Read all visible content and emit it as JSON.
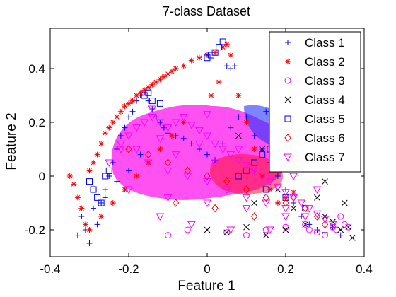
{
  "chart_data": {
    "type": "scatter",
    "title": "7-class Dataset",
    "xlabel": "Feature 1",
    "ylabel": "Feature 2",
    "xlim": [
      -0.4,
      0.4
    ],
    "ylim": [
      -0.3,
      0.55
    ],
    "xticks": [
      -0.4,
      -0.2,
      0,
      0.2,
      0.4
    ],
    "xtick_labels": [
      "-0.4",
      "-0.2",
      "0",
      "0.2",
      "0.4"
    ],
    "yticks": [
      -0.2,
      0,
      0.2,
      0.4
    ],
    "ytick_labels": [
      "-0.2",
      "0",
      "0.2",
      "0.4"
    ],
    "grid": false,
    "legend_position": "top-right",
    "series": [
      {
        "name": "Class 1",
        "marker": "plus",
        "color": "#0000ff",
        "x": [
          -0.33,
          -0.31,
          -0.3,
          -0.28,
          -0.27,
          -0.26,
          -0.25,
          -0.24,
          -0.23,
          -0.22,
          -0.21,
          -0.2,
          -0.19,
          -0.18,
          -0.17,
          -0.16,
          -0.15,
          -0.14,
          -0.13,
          -0.12,
          -0.11,
          -0.1,
          -0.08,
          -0.06,
          -0.04,
          -0.02,
          0,
          0.02,
          0.04,
          0.06,
          0.08,
          0.1,
          0.12,
          0.14,
          0.16,
          0.18,
          0.2,
          0.22,
          0.24,
          0.26,
          0.28,
          0.3,
          0.32,
          0.34,
          -0.32,
          -0.29,
          -0.26,
          -0.23,
          -0.2,
          -0.17,
          0.05,
          0.06,
          0.07,
          0.1,
          0.15,
          0.2,
          0.25
        ],
        "y": [
          -0.22,
          -0.2,
          -0.25,
          -0.18,
          -0.1,
          -0.05,
          0,
          0.05,
          0.1,
          0.15,
          0.18,
          0.22,
          0.24,
          0.28,
          0.3,
          0.31,
          0.28,
          0.25,
          0.22,
          0.2,
          0.18,
          0.16,
          0.15,
          0.14,
          0.12,
          0.1,
          0.08,
          0.06,
          0.12,
          0.18,
          0.22,
          0.2,
          0.15,
          0.1,
          0.05,
          0.0,
          -0.05,
          -0.1,
          -0.15,
          -0.18,
          -0.2,
          -0.21,
          -0.19,
          -0.22,
          -0.15,
          -0.12,
          -0.08,
          -0.02,
          0.02,
          0.08,
          0.41,
          0.4,
          0.41,
          0.22,
          0.24,
          0.2,
          0.18
        ]
      },
      {
        "name": "Class 2",
        "marker": "star",
        "color": "#ff0000",
        "x": [
          -0.35,
          -0.34,
          -0.33,
          -0.32,
          -0.31,
          -0.3,
          -0.29,
          -0.28,
          -0.27,
          -0.26,
          -0.25,
          -0.24,
          -0.23,
          -0.22,
          -0.21,
          -0.2,
          -0.19,
          -0.18,
          -0.17,
          -0.16,
          -0.15,
          -0.14,
          -0.13,
          -0.12,
          -0.11,
          -0.1,
          -0.09,
          -0.08,
          -0.06,
          -0.04,
          -0.02,
          0,
          0.02,
          0.04,
          0.05,
          0.06,
          0.08,
          0.1,
          0.12,
          0.14,
          0.16,
          0.18,
          0.2,
          0.22,
          0.24,
          0.26,
          0.28,
          0.3,
          0.32,
          -0.3,
          -0.27,
          -0.24,
          -0.21,
          -0.18,
          -0.15,
          -0.12,
          -0.09,
          -0.06,
          0.01,
          0.03
        ],
        "y": [
          0.0,
          -0.03,
          -0.08,
          -0.12,
          -0.18,
          0.02,
          0.05,
          0.08,
          0.12,
          0.16,
          0.18,
          0.2,
          0.22,
          0.24,
          0.26,
          0.27,
          0.28,
          0.3,
          0.31,
          0.32,
          0.33,
          0.34,
          0.35,
          0.36,
          0.37,
          0.38,
          0.39,
          0.4,
          0.41,
          0.43,
          0.44,
          0.45,
          0.46,
          0.48,
          0.49,
          0.45,
          0.3,
          0.2,
          0.1,
          0.0,
          -0.05,
          -0.1,
          -0.08,
          -0.06,
          0.05,
          0.1,
          0.15,
          0.12,
          0.08,
          -0.2,
          -0.15,
          -0.1,
          -0.05,
          0.0,
          0.05,
          0.1,
          0.15,
          0.2,
          0.3,
          0.35
        ]
      },
      {
        "name": "Class 3",
        "marker": "circle",
        "color": "#ff00ff",
        "x": [
          0.32,
          0.33,
          0.34,
          0.35,
          0.36,
          0.3,
          0.28,
          0.26,
          0.25,
          0.2,
          0.15,
          0.1,
          0.05,
          -0.05,
          -0.1
        ],
        "y": [
          -0.19,
          -0.2,
          -0.15,
          -0.18,
          -0.19,
          -0.22,
          -0.21,
          -0.2,
          -0.18,
          -0.19,
          -0.2,
          -0.22,
          -0.21,
          -0.2,
          -0.22
        ]
      },
      {
        "name": "Class 4",
        "marker": "x",
        "color": "#000000",
        "x": [
          0.0,
          0.05,
          0.1,
          0.15,
          0.2,
          0.25,
          0.3,
          0.32,
          0.34,
          0.36,
          0.37,
          0.12,
          0.18,
          0.22,
          0.28,
          0.08,
          0.14,
          0.24,
          0.3,
          0.35
        ],
        "y": [
          -0.2,
          -0.21,
          -0.19,
          -0.22,
          -0.2,
          -0.18,
          -0.15,
          -0.17,
          -0.2,
          -0.19,
          -0.23,
          -0.1,
          -0.05,
          -0.12,
          -0.08,
          0.15,
          0.1,
          0.05,
          -0.02,
          -0.1
        ]
      },
      {
        "name": "Class 5",
        "marker": "square",
        "color": "#0000ff",
        "x": [
          0.0,
          0.01,
          0.02,
          0.03,
          0.04,
          -0.3,
          -0.29,
          -0.28,
          -0.27,
          -0.26,
          -0.25,
          -0.16,
          -0.15,
          -0.14,
          -0.12,
          0.08,
          0.1,
          0.12,
          0.14,
          0.16,
          0.18,
          0.2,
          0.22,
          0.24,
          0.26,
          0.28,
          0.3,
          0.15,
          0.2,
          0.25
        ],
        "y": [
          0.44,
          0.45,
          0.46,
          0.48,
          0.5,
          -0.02,
          -0.05,
          -0.08,
          -0.1,
          0.0,
          0.02,
          0.3,
          0.31,
          0.28,
          0.27,
          0.0,
          0.02,
          0.05,
          0.08,
          0.1,
          0.12,
          0.15,
          0.18,
          0.2,
          0.16,
          0.12,
          0.1,
          -0.05,
          -0.08,
          -0.12
        ]
      },
      {
        "name": "Class 6",
        "marker": "diamond",
        "color": "#ff0000",
        "x": [
          -0.2,
          -0.15,
          -0.1,
          -0.05,
          0.0,
          0.05,
          0.1,
          0.15,
          0.2,
          0.25,
          0.28,
          0.3,
          -0.08,
          0.02,
          0.12,
          0.22,
          0.26,
          0.18
        ],
        "y": [
          0.1,
          0.08,
          0.05,
          0.02,
          0.0,
          -0.02,
          -0.05,
          -0.08,
          -0.1,
          -0.12,
          -0.15,
          -0.18,
          -0.1,
          -0.12,
          -0.15,
          -0.08,
          0.05,
          0.12
        ]
      },
      {
        "name": "Class 7",
        "marker": "triangle-down",
        "color": "#ff00ff",
        "x": [
          -0.25,
          -0.22,
          -0.2,
          -0.18,
          -0.16,
          -0.14,
          -0.12,
          -0.1,
          -0.08,
          -0.06,
          -0.04,
          -0.02,
          0,
          0.02,
          0.04,
          0.06,
          0.08,
          0.1,
          0.12,
          0.14,
          0.16,
          0.18,
          0.2,
          0.22,
          0.24,
          0.26,
          0.28,
          0.3,
          0.32,
          -0.15,
          -0.1,
          -0.05,
          0,
          0.05,
          0.1,
          0.15,
          0.2,
          0.25,
          -0.2,
          -0.1,
          0,
          0.1,
          0.2,
          -0.18,
          -0.08,
          0.02,
          0.12,
          0.22,
          -0.22,
          -0.12,
          -0.02,
          0.08,
          0.18,
          0.28,
          -0.12,
          -0.04,
          0.06,
          0.16,
          -0.14,
          0.0
        ],
        "y": [
          0.05,
          0.1,
          0.15,
          0.18,
          0.2,
          0.22,
          0.2,
          0.18,
          0.2,
          0.22,
          0.19,
          0.17,
          0.15,
          0.12,
          0.1,
          0.08,
          0.06,
          0.04,
          0.02,
          0.0,
          -0.02,
          -0.04,
          -0.06,
          -0.08,
          -0.1,
          -0.12,
          -0.14,
          -0.16,
          -0.18,
          0.05,
          0.02,
          0.0,
          -0.02,
          -0.05,
          -0.08,
          -0.1,
          -0.12,
          -0.15,
          -0.05,
          -0.08,
          -0.1,
          -0.12,
          -0.15,
          0.1,
          0.08,
          0.05,
          0.03,
          0.0,
          0.12,
          0.14,
          0.12,
          0.1,
          0.06,
          -0.05,
          -0.15,
          -0.18,
          -0.2,
          -0.2,
          0.25,
          0.23
        ]
      }
    ]
  }
}
